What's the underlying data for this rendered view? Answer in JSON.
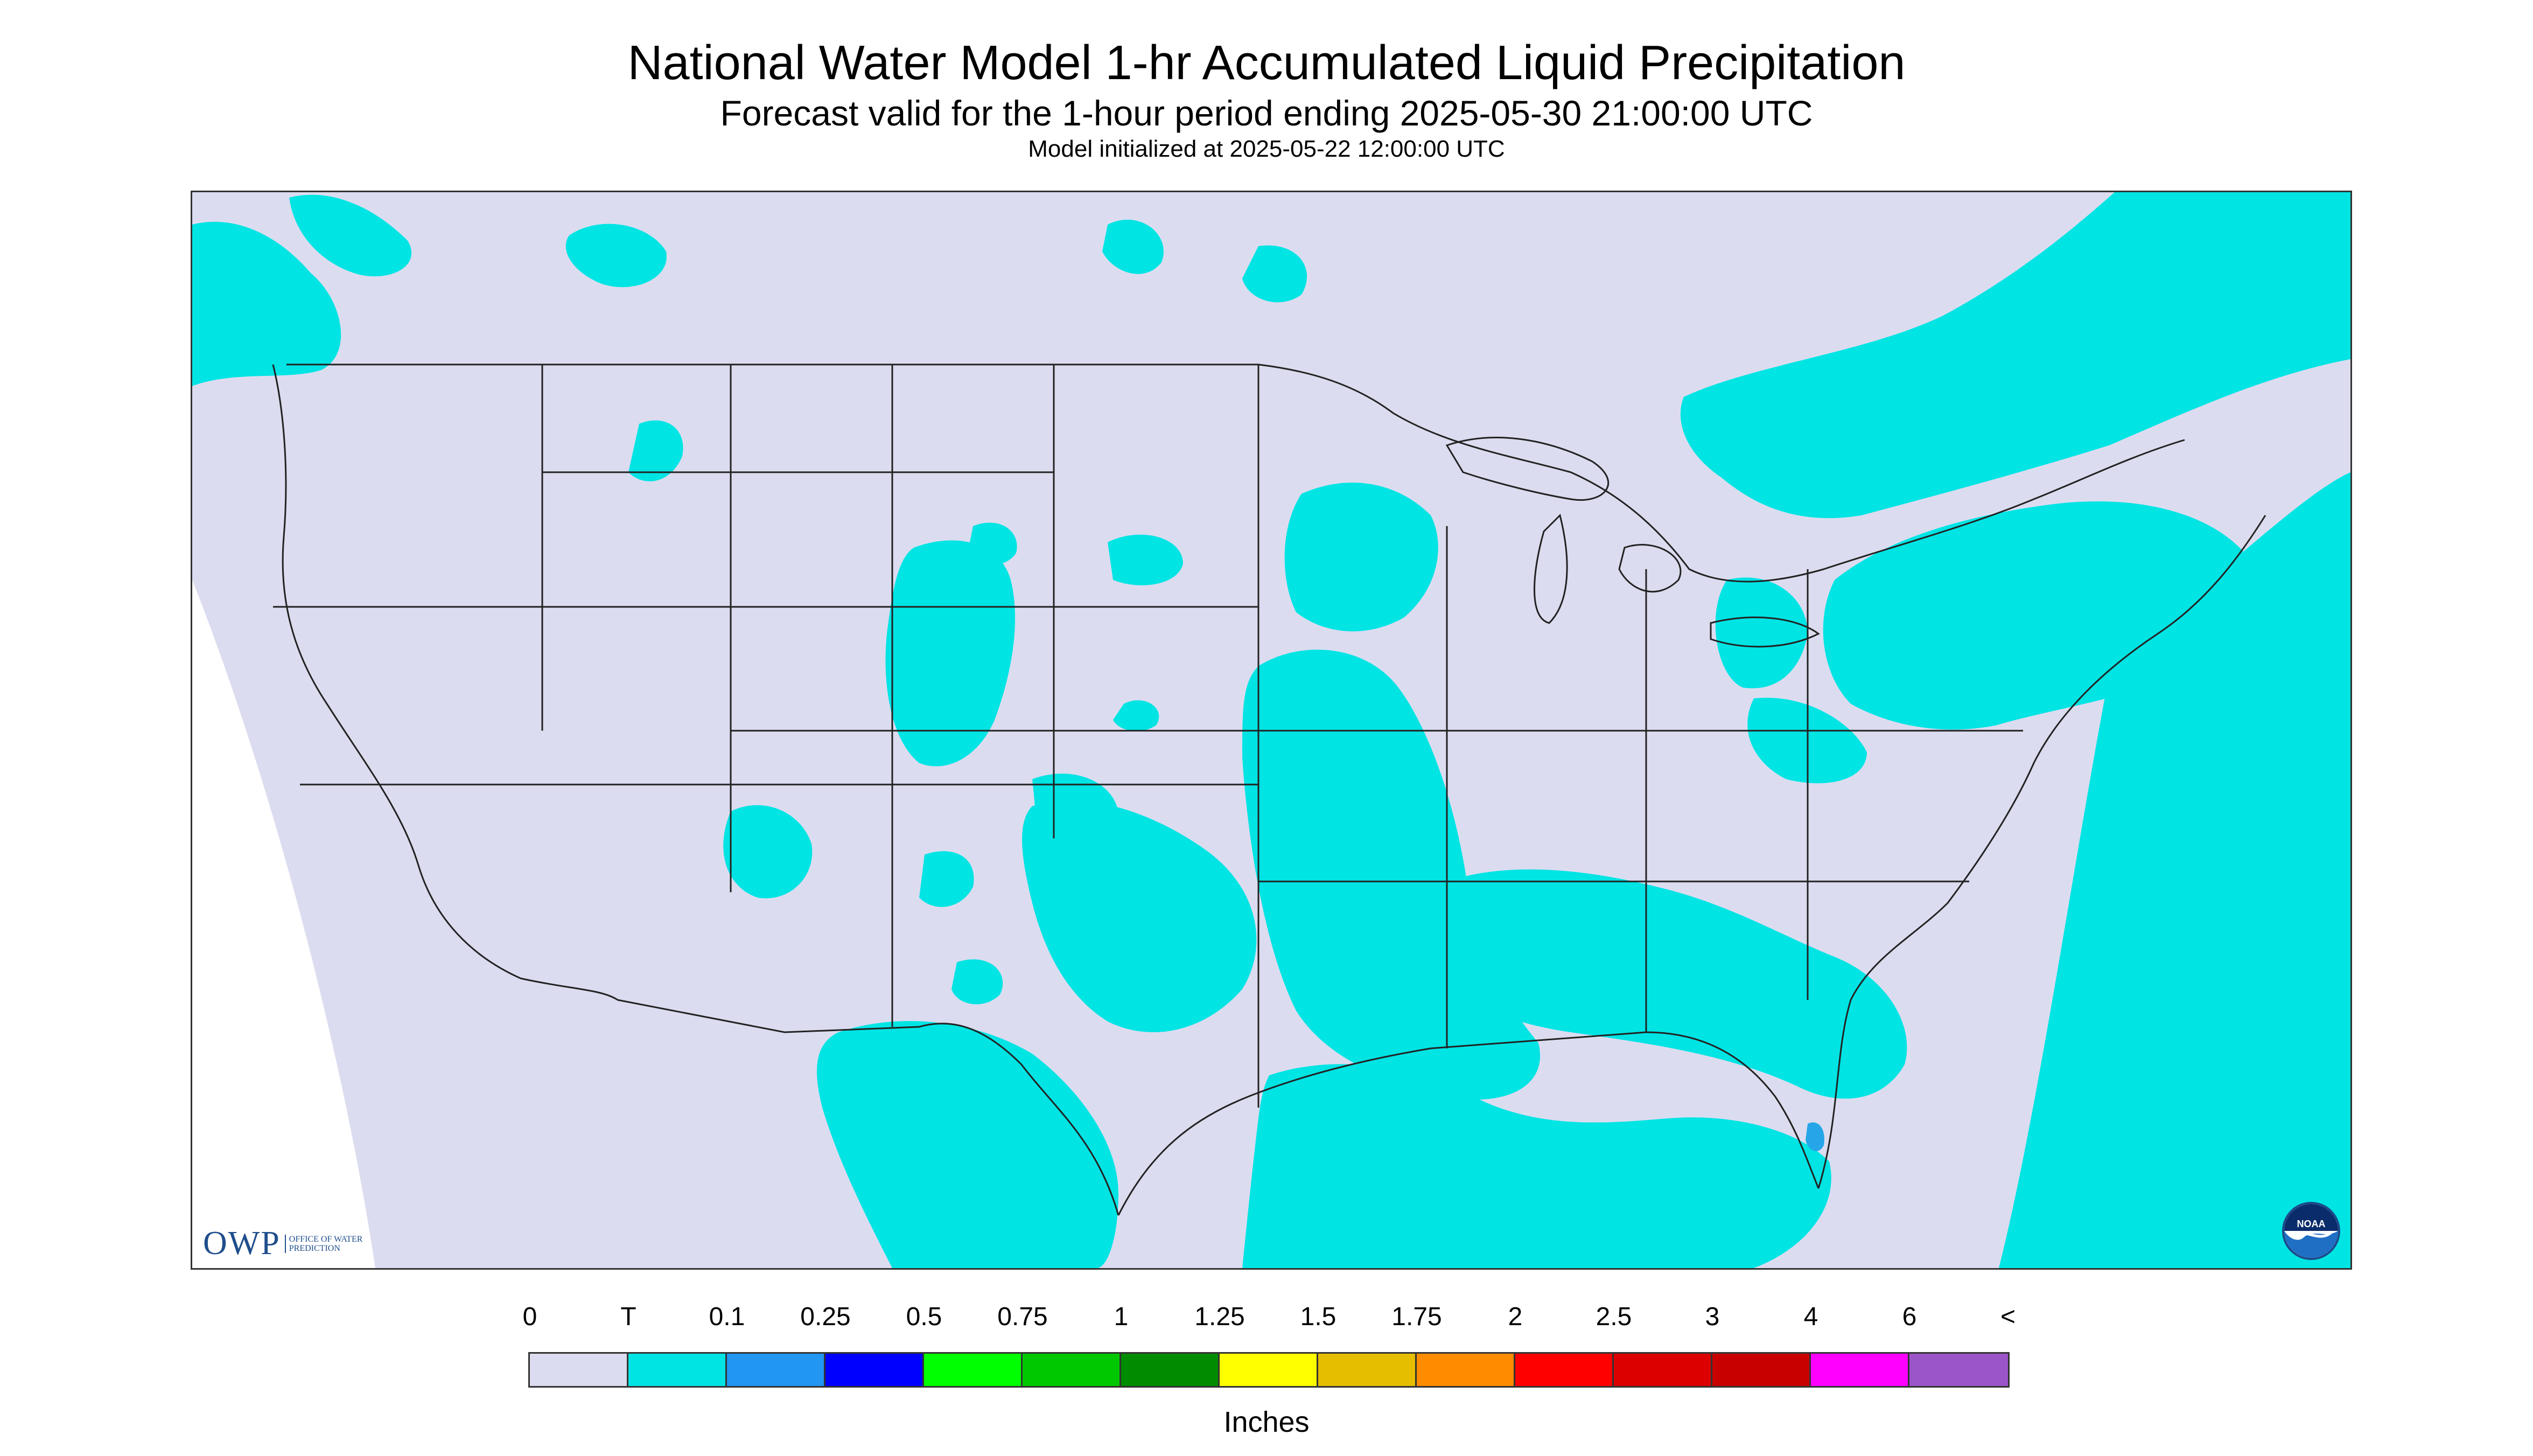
{
  "header": {
    "title": "National Water Model 1-hr Accumulated Liquid Precipitation",
    "subtitle": "Forecast valid for the 1-hour period ending 2025-05-30 21:00:00 UTC",
    "init": "Model initialized at 2025-05-22 12:00:00 UTC"
  },
  "map": {
    "background_color": "#dcdcf0",
    "precip_color": "#00e4e4",
    "heavier_precip_color": "#26a6e8",
    "boundary_color": "#222222",
    "region": "Continental United States"
  },
  "logos": {
    "owp_mark": "OWP",
    "owp_text": "Office of Water Prediction",
    "noaa_text": "NOAA"
  },
  "legend": {
    "units": "Inches",
    "labels": [
      "0",
      "T",
      "0.1",
      "0.25",
      "0.5",
      "0.75",
      "1",
      "1.25",
      "1.5",
      "1.75",
      "2",
      "2.5",
      "3",
      "4",
      "6",
      "<"
    ],
    "colors": [
      "#dcdcf0",
      "#00e4e4",
      "#2196f3",
      "#0000ff",
      "#00ff00",
      "#00c800",
      "#008c00",
      "#ffff00",
      "#e6be00",
      "#ff8c00",
      "#ff0000",
      "#dc0000",
      "#c80000",
      "#ff00ff",
      "#9b55c8"
    ]
  }
}
